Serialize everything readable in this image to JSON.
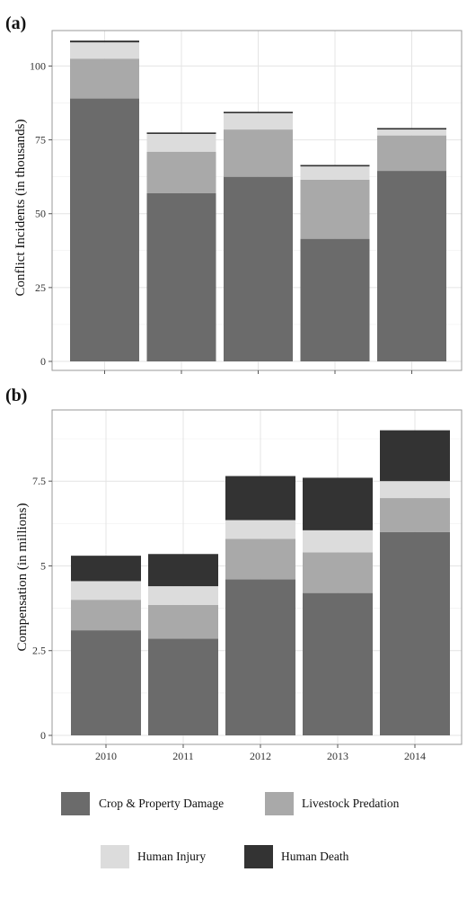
{
  "chart_data": [
    {
      "type": "bar",
      "stacked": true,
      "panel_label": "(a)",
      "title": "",
      "xlabel": "",
      "ylabel": "Conflict Incidents (in thousands)",
      "ylim": [
        0,
        112
      ],
      "yticks": [
        "0",
        "25",
        "50",
        "75",
        "100"
      ],
      "categories": [
        "2010",
        "2011",
        "2012",
        "2013",
        "2014"
      ],
      "show_x_tick_labels": false,
      "grid": true,
      "series": [
        {
          "name": "Crop & Property Damage",
          "color": "#6b6b6b",
          "values": [
            89,
            57,
            62.5,
            41.5,
            64.5
          ]
        },
        {
          "name": "Livestock Predation",
          "color": "#a9a9a9",
          "values": [
            13.5,
            14,
            16,
            20,
            12
          ]
        },
        {
          "name": "Human Injury",
          "color": "#dcdcdc",
          "values": [
            5.5,
            6,
            5.5,
            4.5,
            2
          ]
        },
        {
          "name": "Human Death",
          "color": "#333333",
          "values": [
            0.6,
            0.5,
            0.5,
            0.5,
            0.5
          ]
        }
      ]
    },
    {
      "type": "bar",
      "stacked": true,
      "panel_label": "(b)",
      "title": "",
      "xlabel": "",
      "ylabel": "Compensation (in millions)",
      "ylim": [
        0,
        9.6
      ],
      "yticks": [
        "0",
        "2.5",
        "5",
        "7.5"
      ],
      "categories": [
        "2010",
        "2011",
        "2012",
        "2013",
        "2014"
      ],
      "show_x_tick_labels": true,
      "grid": true,
      "series": [
        {
          "name": "Crop & Property Damage",
          "color": "#6b6b6b",
          "values": [
            3.1,
            2.85,
            4.6,
            4.2,
            6.0
          ]
        },
        {
          "name": "Livestock Predation",
          "color": "#a9a9a9",
          "values": [
            0.9,
            1.0,
            1.2,
            1.2,
            1.0
          ]
        },
        {
          "name": "Human Injury",
          "color": "#dcdcdc",
          "values": [
            0.55,
            0.55,
            0.55,
            0.65,
            0.5
          ]
        },
        {
          "name": "Human Death",
          "color": "#333333",
          "values": [
            0.75,
            0.95,
            1.3,
            1.55,
            1.5
          ]
        }
      ]
    }
  ],
  "legend": {
    "placement": "bottom",
    "items": [
      {
        "label": "Crop & Property Damage",
        "color": "#6b6b6b"
      },
      {
        "label": "Livestock Predation",
        "color": "#a9a9a9"
      },
      {
        "label": "Human Injury",
        "color": "#dcdcdc"
      },
      {
        "label": "Human Death",
        "color": "#333333"
      }
    ]
  }
}
